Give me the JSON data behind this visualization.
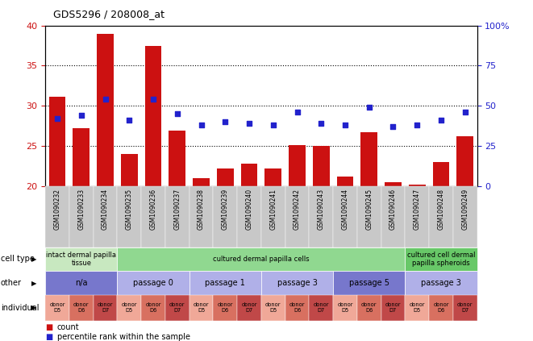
{
  "title": "GDS5296 / 208008_at",
  "samples": [
    "GSM1090232",
    "GSM1090233",
    "GSM1090234",
    "GSM1090235",
    "GSM1090236",
    "GSM1090237",
    "GSM1090238",
    "GSM1090239",
    "GSM1090240",
    "GSM1090241",
    "GSM1090242",
    "GSM1090243",
    "GSM1090244",
    "GSM1090245",
    "GSM1090246",
    "GSM1090247",
    "GSM1090248",
    "GSM1090249"
  ],
  "counts": [
    31.1,
    27.2,
    39.0,
    24.0,
    37.5,
    26.9,
    21.0,
    22.2,
    22.8,
    22.2,
    25.1,
    25.0,
    21.2,
    26.7,
    20.5,
    20.2,
    23.0,
    26.2
  ],
  "percentile_ranks_pct": [
    42,
    44,
    54,
    41,
    54,
    45,
    38,
    40,
    39,
    38,
    46,
    39,
    38,
    49,
    37,
    38,
    41,
    46
  ],
  "ylim_left": [
    20,
    40
  ],
  "ylim_right": [
    0,
    100
  ],
  "yticks_left": [
    20,
    25,
    30,
    35,
    40
  ],
  "yticks_right": [
    0,
    25,
    50,
    75,
    100
  ],
  "cell_type_groups": [
    {
      "label": "intact dermal papilla\ntissue",
      "start": 0,
      "end": 3,
      "color": "#c8e8c0"
    },
    {
      "label": "cultured dermal papilla cells",
      "start": 3,
      "end": 15,
      "color": "#90d890"
    },
    {
      "label": "cultured cell dermal\npapilla spheroids",
      "start": 15,
      "end": 18,
      "color": "#68c868"
    }
  ],
  "other_groups": [
    {
      "label": "n/a",
      "start": 0,
      "end": 3,
      "color": "#7777cc"
    },
    {
      "label": "passage 0",
      "start": 3,
      "end": 6,
      "color": "#b0b0e8"
    },
    {
      "label": "passage 1",
      "start": 6,
      "end": 9,
      "color": "#b0b0e8"
    },
    {
      "label": "passage 3",
      "start": 9,
      "end": 12,
      "color": "#b0b0e8"
    },
    {
      "label": "passage 5",
      "start": 12,
      "end": 15,
      "color": "#7777cc"
    },
    {
      "label": "passage 3",
      "start": 15,
      "end": 18,
      "color": "#b0b0e8"
    }
  ],
  "individual_labels": [
    "donor\nD5",
    "donor\nD6",
    "donor\nD7",
    "donor\nD5",
    "donor\nD6",
    "donor\nD7",
    "donor\nD5",
    "donor\nD6",
    "donor\nD7",
    "donor\nD5",
    "donor\nD6",
    "donor\nD7",
    "donor\nD5",
    "donor\nD6",
    "donor\nD7",
    "donor\nD5",
    "donor\nD6",
    "donor\nD7"
  ],
  "individual_colors": [
    "#f0a898",
    "#d87060",
    "#c04848",
    "#f0a898",
    "#d87060",
    "#c04848",
    "#f0a898",
    "#d87060",
    "#c04848",
    "#f0a898",
    "#d87060",
    "#c04848",
    "#f0a898",
    "#d87060",
    "#c04848",
    "#f0a898",
    "#d87060",
    "#c04848"
  ],
  "bar_color": "#cc1111",
  "dot_color": "#2222cc",
  "axis_color_left": "#cc1111",
  "axis_color_right": "#2222cc",
  "legend_count_color": "#cc1111",
  "legend_pct_color": "#2222cc",
  "xtick_bg_color": "#c8c8c8"
}
